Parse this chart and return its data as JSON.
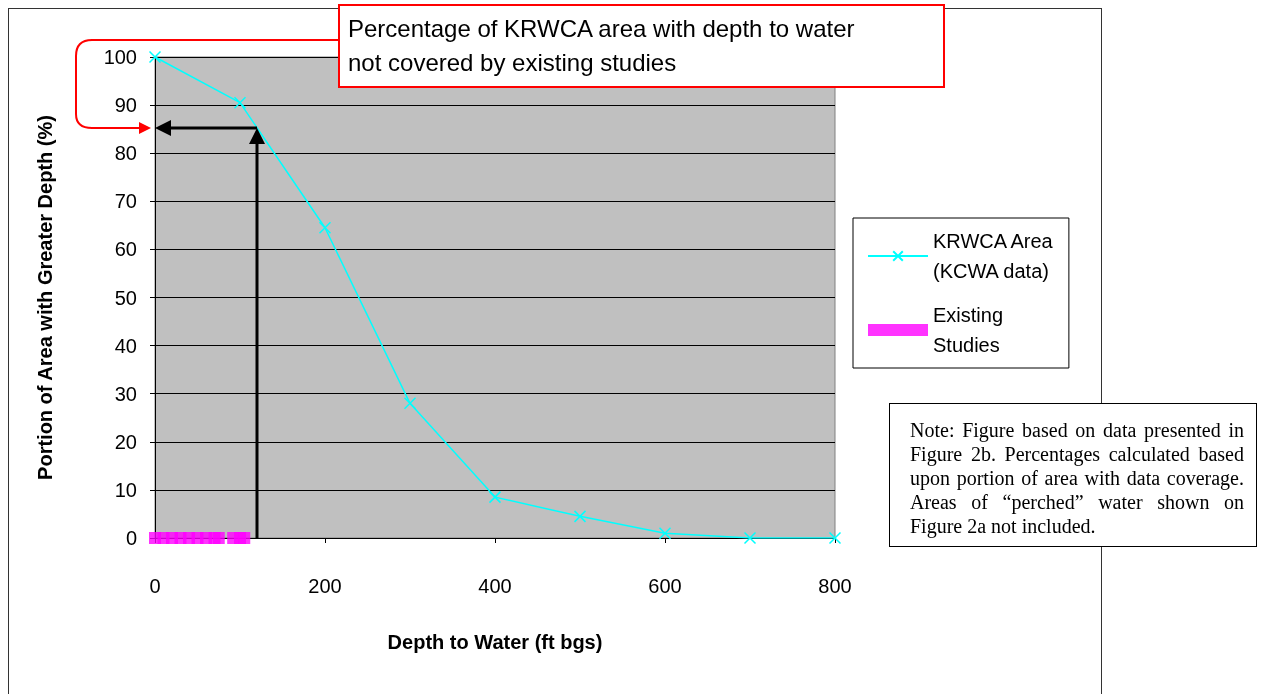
{
  "chart_data": {
    "type": "line",
    "xlabel": "Depth to Water (ft bgs)",
    "ylabel": "Portion of Area with Greater Depth (%)",
    "xlim": [
      0,
      800
    ],
    "xticks": [
      0,
      200,
      400,
      600,
      800
    ],
    "ylim": [
      0,
      100
    ],
    "yticks": [
      0,
      10,
      20,
      30,
      40,
      50,
      60,
      70,
      80,
      90,
      100
    ],
    "grid": "y",
    "legend": "right",
    "series": [
      {
        "name": "KRWCA Area\n(KCWA data)",
        "color": "#00ffff",
        "marker": "cross",
        "x": [
          0,
          100,
          200,
          300,
          400,
          500,
          600,
          700,
          800
        ],
        "values": [
          100,
          90.5,
          64.5,
          28,
          8.5,
          4.5,
          1,
          0,
          0
        ]
      },
      {
        "name": "Existing\nStudies",
        "type": "scatter",
        "color": "#ff00ff",
        "marker": "square",
        "x": [
          0,
          10,
          20,
          30,
          40,
          50,
          60,
          70,
          75,
          92,
          100,
          105
        ],
        "values": [
          0,
          0,
          0,
          0,
          0,
          0,
          0,
          0,
          0,
          0,
          0,
          0
        ]
      }
    ],
    "annotations": [
      "Percentage of KRWCA area with depth to water not covered by existing studies",
      "Note: Figure based on data presented in Figure 2b. Percentages calculated based upon portion of area with data coverage. Areas of “perched” water shown on Figure 2a not included."
    ]
  }
}
